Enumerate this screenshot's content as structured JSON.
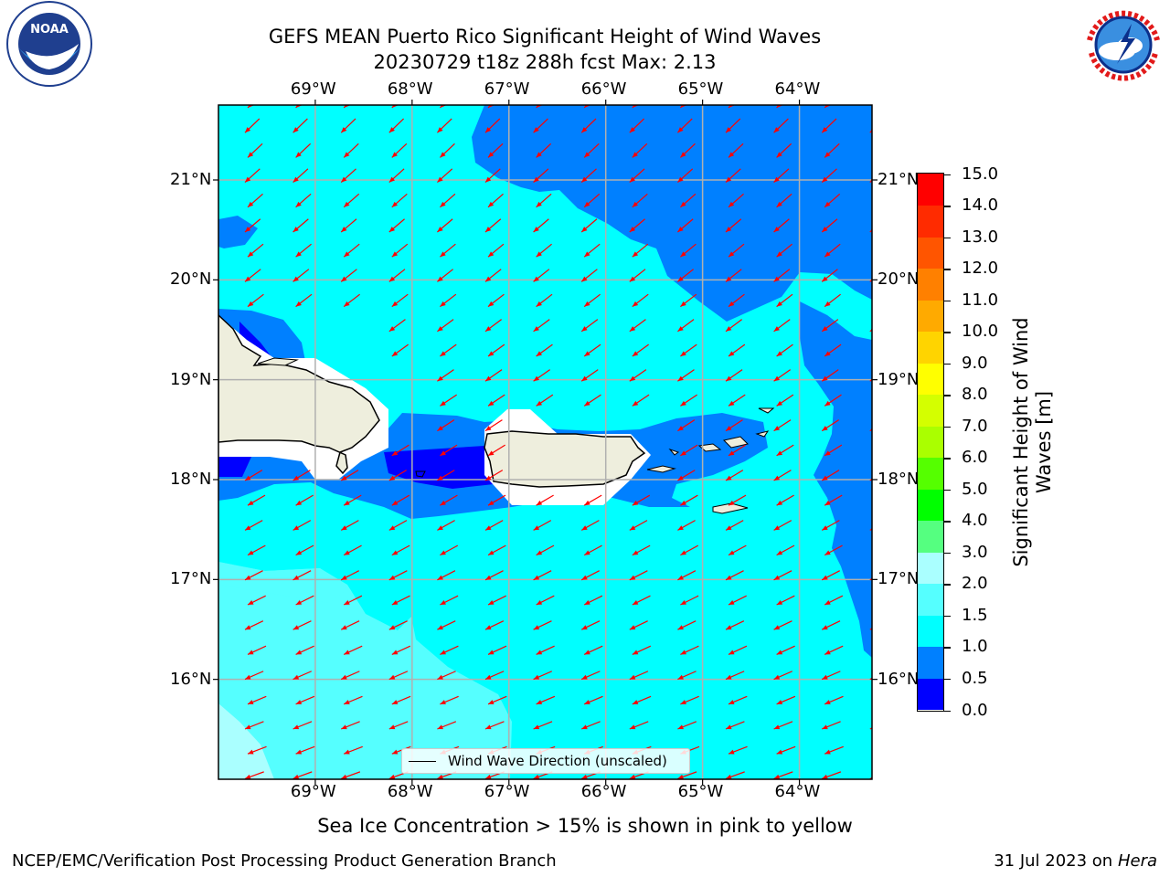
{
  "header": {
    "title_line1": "GEFS MEAN Puerto Rico Significant Height of Wind Waves",
    "title_line2": "20230729 t18z 288h fcst   Max: 2.13"
  },
  "logos": {
    "left": {
      "name": "NOAA",
      "text": "NOAA",
      "ring_text": "NATIONAL OCEANIC AND ATMOSPHERIC ADMINISTRATION · U.S. DEPARTMENT OF COMMERCE"
    },
    "right": {
      "name": "National Weather Service",
      "ring_text": "NATIONAL WEATHER SERVICE"
    }
  },
  "map": {
    "lon_labels": [
      "69°W",
      "68°W",
      "67°W",
      "66°W",
      "65°W",
      "64°W"
    ],
    "lat_labels": [
      "21°N",
      "20°N",
      "19°N",
      "18°N",
      "17°N",
      "16°N"
    ],
    "lon_values": [
      -69,
      -68,
      -67,
      -66,
      -65,
      -64
    ],
    "lat_values": [
      21,
      20,
      19,
      18,
      17,
      16
    ],
    "extent": {
      "lon_min": -70,
      "lon_max": -63.25,
      "lat_min": 15,
      "lat_max": 21.75
    },
    "arrow_color": "#ff0000",
    "land_color": "#eeeedd",
    "legend_label": "Wind Wave Direction (unscaled)"
  },
  "colorbar": {
    "levels": [
      "0.0",
      "0.5",
      "1.0",
      "1.5",
      "2.0",
      "3.0",
      "4.0",
      "5.0",
      "6.0",
      "7.0",
      "8.0",
      "9.0",
      "10.0",
      "11.0",
      "12.0",
      "13.0",
      "14.0",
      "15.0"
    ],
    "colors": [
      "#0000ff",
      "#0080ff",
      "#00ffff",
      "#55ffff",
      "#aaffff",
      "#55ff80",
      "#00ff00",
      "#55ff00",
      "#aaff00",
      "#d4ff00",
      "#ffff00",
      "#ffd400",
      "#ffaa00",
      "#ff8000",
      "#ff5500",
      "#ff2b00",
      "#ff0000"
    ],
    "title": "Significant Height of Wind Waves [m]"
  },
  "footer": {
    "subtitle": "Sea Ice Concentration > 15% is shown in pink to yellow",
    "left": "NCEP/EMC/Verification Post Processing Product Generation Branch",
    "right_date": "31 Jul 2023 on ",
    "right_host": "Hera"
  }
}
